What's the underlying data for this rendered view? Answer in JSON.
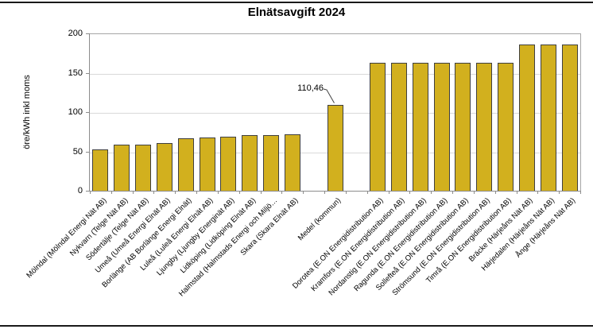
{
  "page": {
    "top_rule": true,
    "bottom_rule": true
  },
  "chart_data": {
    "type": "bar",
    "title": "Elnätsavgift 2024",
    "xlabel": "",
    "ylabel": "öre/kWh inkl moms",
    "ylim": [
      0,
      200
    ],
    "yticks": [
      0,
      50,
      100,
      150,
      200
    ],
    "grid": "horizontal-light-gray",
    "legend_position": "none",
    "bar_color": "#d2b01e",
    "bar_border_color": "#3f3f3f",
    "categories": [
      "Mölndal (Mölndal Energi Nät AB)",
      "Nykvarn (Telge Nät AB)",
      "Södertälje (Telge Nät AB)",
      "Umeå (Umeå Energi Elnät AB)",
      "Borlänge (AB Borlänge Energi Elnät)",
      "Luleå (Luleå Energi Elnät AB)",
      "Ljungby (Ljungby Energinät AB)",
      "Lidköping (Lidköping Elnät AB)",
      "Halmstad (Halmstads Energi och Miljö…",
      "Skara (Skara Elnät AB)",
      "Medel (kommun)",
      "Dorotea (E.ON Energidistribution AB)",
      "Kramfors (E.ON Energidistribution AB)",
      "Nordanstig (E.ON Energidistribution AB)",
      "Ragunda (E.ON Energidistribution AB)",
      "Sollefteå (E.ON Energidistribution AB)",
      "Strömsund (E.ON Energidistribution AB)",
      "Timrå (E.ON Energidistribution AB)",
      "Bräcke (Härjeåns Nät AB)",
      "Härjedalen (Härjeåns Nät AB)",
      "Ånge (Härjeåns Nät AB)"
    ],
    "values": [
      54,
      60,
      60,
      62,
      68,
      68.5,
      69.5,
      72,
      72,
      73,
      110.46,
      163.5,
      163.5,
      163.5,
      163.5,
      163.5,
      163.5,
      163.5,
      187,
      187,
      187
    ],
    "gap_after_categories": [
      "Skara (Skara Elnät AB)",
      "Medel (kommun)"
    ],
    "annotation": {
      "text": "110,46",
      "category": "Medel (kommun)",
      "value": 110.46
    }
  }
}
